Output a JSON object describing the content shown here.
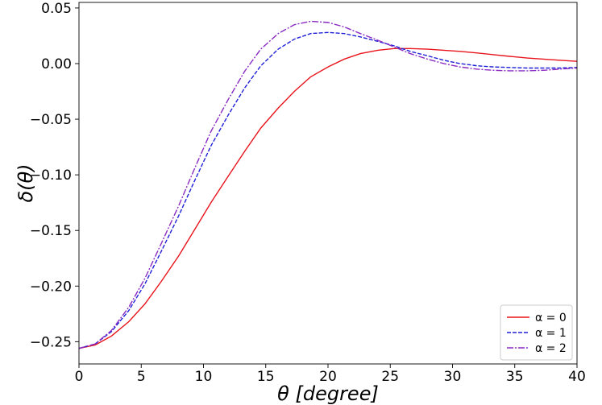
{
  "chart_data": {
    "type": "line",
    "xlabel": "θ [degree]",
    "ylabel": "δ(θ)",
    "xlim": [
      0,
      40
    ],
    "ylim": [
      -0.27,
      0.055
    ],
    "x_ticks": [
      0,
      5,
      10,
      15,
      20,
      25,
      30,
      35,
      40
    ],
    "x_tick_labels": [
      "0",
      "5",
      "10",
      "15",
      "20",
      "25",
      "30",
      "35",
      "40"
    ],
    "y_ticks": [
      -0.25,
      -0.2,
      -0.15,
      -0.1,
      -0.05,
      0.0,
      0.05
    ],
    "y_tick_labels": [
      "−0.25",
      "−0.20",
      "−0.15",
      "−0.10",
      "−0.05",
      "0.00",
      "0.05"
    ],
    "grid": false,
    "legend_position": "bottom-right",
    "x": [
      0,
      1.3,
      2.6,
      4,
      5.3,
      6.6,
      8,
      9.3,
      10.6,
      12,
      13.3,
      14.6,
      16,
      17.3,
      18.6,
      20,
      21.3,
      22.6,
      24,
      25.3,
      26.6,
      28,
      29.3,
      30.6,
      32,
      33.3,
      34.6,
      36,
      37.3,
      38.6,
      40
    ],
    "series": [
      {
        "name": "α = 0",
        "color": "#e8141c",
        "dash": "solid",
        "values": [
          -0.256,
          -0.253,
          -0.245,
          -0.232,
          -0.216,
          -0.196,
          -0.173,
          -0.149,
          -0.125,
          -0.101,
          -0.079,
          -0.058,
          -0.04,
          -0.025,
          -0.012,
          -0.003,
          0.004,
          0.009,
          0.012,
          0.0135,
          0.0135,
          0.013,
          0.012,
          0.011,
          0.0095,
          0.008,
          0.0065,
          0.005,
          0.004,
          0.003,
          0.002
        ]
      },
      {
        "name": "α = 1",
        "color": "#1f1fd6",
        "dash": "dashed",
        "values": [
          -0.256,
          -0.252,
          -0.241,
          -0.222,
          -0.198,
          -0.169,
          -0.137,
          -0.105,
          -0.074,
          -0.046,
          -0.022,
          -0.002,
          0.013,
          0.022,
          0.027,
          0.028,
          0.027,
          0.024,
          0.02,
          0.016,
          0.011,
          0.007,
          0.003,
          0.0,
          -0.002,
          -0.003,
          -0.0035,
          -0.004,
          -0.004,
          -0.004,
          -0.0035
        ]
      },
      {
        "name": "α = 2",
        "color": "#8a2bc2",
        "dash": "dashdot",
        "values": [
          -0.256,
          -0.252,
          -0.24,
          -0.219,
          -0.193,
          -0.162,
          -0.128,
          -0.094,
          -0.061,
          -0.032,
          -0.007,
          0.013,
          0.027,
          0.035,
          0.038,
          0.037,
          0.033,
          0.027,
          0.021,
          0.015,
          0.009,
          0.004,
          0.0,
          -0.003,
          -0.005,
          -0.006,
          -0.0065,
          -0.0065,
          -0.006,
          -0.005,
          -0.004
        ]
      }
    ]
  }
}
